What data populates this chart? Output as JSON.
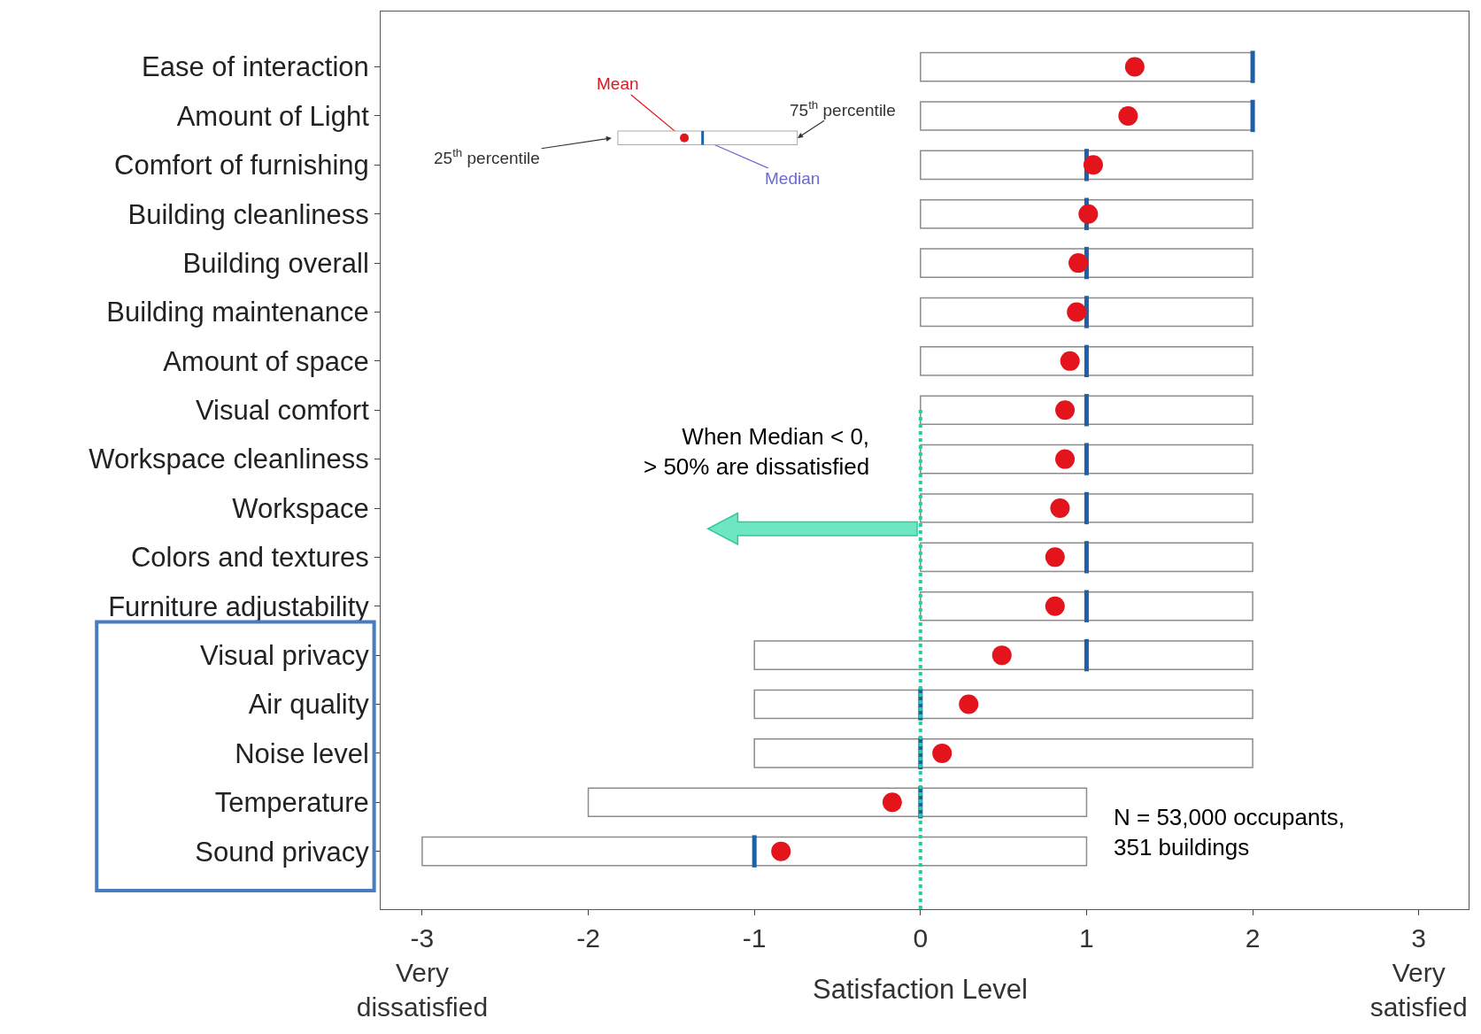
{
  "chart_data": {
    "type": "box",
    "orientation": "horizontal",
    "xlabel": "Satisfaction Level",
    "categories": [
      "Ease of interaction",
      "Amount of Light",
      "Comfort of furnishing",
      "Building cleanliness",
      "Building overall",
      "Building maintenance",
      "Amount of space",
      "Visual comfort",
      "Workspace cleanliness",
      "Workspace",
      "Colors and textures",
      "Furniture adjustability",
      "Visual privacy",
      "Air quality",
      "Noise level",
      "Temperature",
      "Sound privacy"
    ],
    "series": [
      {
        "color": "#8c8c8c",
        "boxes": [
          {
            "low": 0,
            "q1": 0,
            "median": 2,
            "q3": 2,
            "high": 2,
            "mean": 1.29
          },
          {
            "low": 0,
            "q1": 0,
            "median": 2,
            "q3": 2,
            "high": 2,
            "mean": 1.25
          },
          {
            "low": 0,
            "q1": 0,
            "median": 1,
            "q3": 2,
            "high": 2,
            "mean": 1.04
          },
          {
            "low": 0,
            "q1": 0,
            "median": 1,
            "q3": 2,
            "high": 2,
            "mean": 1.01
          },
          {
            "low": 0,
            "q1": 0,
            "median": 1,
            "q3": 2,
            "high": 2,
            "mean": 0.95
          },
          {
            "low": 0,
            "q1": 0,
            "median": 1,
            "q3": 2,
            "high": 2,
            "mean": 0.94
          },
          {
            "low": 0,
            "q1": 0,
            "median": 1,
            "q3": 2,
            "high": 2,
            "mean": 0.9
          },
          {
            "low": 0,
            "q1": 0,
            "median": 1,
            "q3": 2,
            "high": 2,
            "mean": 0.87
          },
          {
            "low": 0,
            "q1": 0,
            "median": 1,
            "q3": 2,
            "high": 2,
            "mean": 0.87
          },
          {
            "low": 0,
            "q1": 0,
            "median": 1,
            "q3": 2,
            "high": 2,
            "mean": 0.84
          },
          {
            "low": 0,
            "q1": 0,
            "median": 1,
            "q3": 2,
            "high": 2,
            "mean": 0.81
          },
          {
            "low": 0,
            "q1": 0,
            "median": 1,
            "q3": 2,
            "high": 2,
            "mean": 0.81
          },
          {
            "low": -1,
            "q1": -1,
            "median": 1,
            "q3": 2,
            "high": 2,
            "mean": 0.49
          },
          {
            "low": -1,
            "q1": -1,
            "median": 0,
            "q3": 2,
            "high": 2,
            "mean": 0.29
          },
          {
            "low": -1,
            "q1": -1,
            "median": 0,
            "q3": 2,
            "high": 2,
            "mean": 0.13
          },
          {
            "low": -2,
            "q1": -2,
            "median": 0,
            "q3": 1,
            "high": 1,
            "mean": -0.17
          },
          {
            "low": -3,
            "q1": -3,
            "median": -1,
            "q3": 1,
            "high": 1,
            "mean": -0.84
          }
        ]
      }
    ],
    "xlim": [
      -3.25,
      3.3
    ],
    "xticks": [
      {
        "value": -3,
        "label": "-3\nVery\ndissatisfied"
      },
      -2,
      -1,
      0,
      1,
      2,
      {
        "value": 3,
        "label": "3\nVery\nsatisfied"
      }
    ],
    "grid": false,
    "ref_lines": [
      {
        "axis": "x",
        "value": 0,
        "color": "#1fd1a0",
        "line_style": "dotted"
      }
    ],
    "annotations": [
      "When Median < 0,\n> 50% are dissatisfied",
      "N = 53,000 occupants,\n351 buildings",
      "Mean",
      "Median",
      "25$^{th}$ percentile",
      "75$^{th}$ percentile"
    ]
  }
}
